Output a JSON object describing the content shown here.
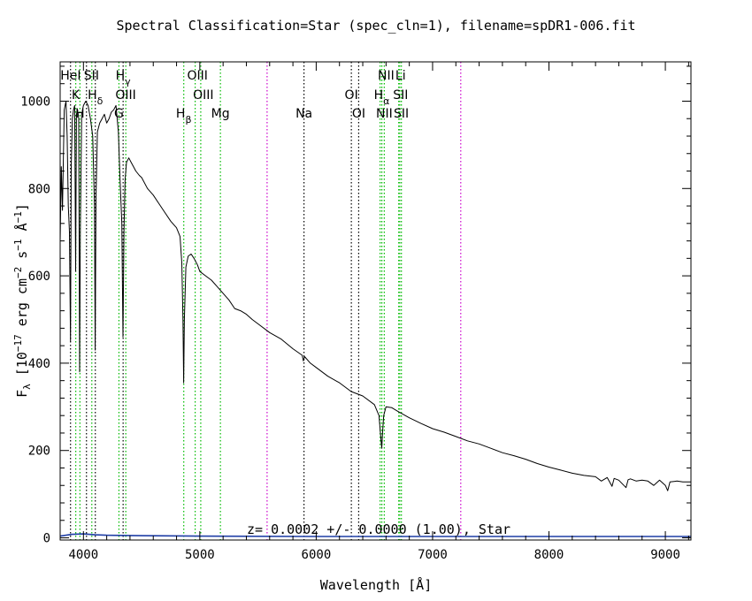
{
  "chart_data": {
    "type": "line",
    "title": "Spectral Classification=Star (spec_cln=1), filename=spDR1-006.fit",
    "xlabel_text": "Wavelength [",
    "xlabel_unit": "Å",
    "xlabel_close": "]",
    "ylabel_main": "F",
    "ylabel_sub": "λ",
    "ylabel_part1": " [10",
    "ylabel_exp1": "−17",
    "ylabel_part2": " erg cm",
    "ylabel_exp2": "−2",
    "ylabel_part3": " s",
    "ylabel_exp3": "−1",
    "ylabel_part4": " Å",
    "ylabel_exp4": "−1",
    "ylabel_part5": "]",
    "xlim": [
      3800,
      9220
    ],
    "ylim": [
      -5,
      1090
    ],
    "xticks": [
      4000,
      5000,
      6000,
      7000,
      8000,
      9000
    ],
    "yticks": [
      0,
      200,
      400,
      600,
      800,
      1000
    ],
    "annotation": "z= 0.0002 +/- 0.0000 (1.00), Star",
    "series": [
      {
        "color": "#000000",
        "points": [
          [
            3800,
            680
          ],
          [
            3810,
            850
          ],
          [
            3820,
            750
          ],
          [
            3835,
            980
          ],
          [
            3850,
            1000
          ],
          [
            3860,
            920
          ],
          [
            3870,
            760
          ],
          [
            3880,
            700
          ],
          [
            3889,
            450
          ],
          [
            3895,
            850
          ],
          [
            3905,
            960
          ],
          [
            3915,
            980
          ],
          [
            3925,
            990
          ],
          [
            3933,
            610
          ],
          [
            3940,
            970
          ],
          [
            3950,
            980
          ],
          [
            3960,
            960
          ],
          [
            3967,
            380
          ],
          [
            3973,
            700
          ],
          [
            3985,
            970
          ],
          [
            4000,
            990
          ],
          [
            4020,
            1000
          ],
          [
            4040,
            990
          ],
          [
            4060,
            960
          ],
          [
            4080,
            920
          ],
          [
            4095,
            760
          ],
          [
            4101,
            430
          ],
          [
            4108,
            780
          ],
          [
            4120,
            930
          ],
          [
            4140,
            950
          ],
          [
            4160,
            960
          ],
          [
            4180,
            970
          ],
          [
            4200,
            950
          ],
          [
            4220,
            960
          ],
          [
            4240,
            975
          ],
          [
            4260,
            980
          ],
          [
            4280,
            990
          ],
          [
            4300,
            930
          ],
          [
            4315,
            820
          ],
          [
            4330,
            720
          ],
          [
            4340,
            460
          ],
          [
            4348,
            700
          ],
          [
            4358,
            820
          ],
          [
            4370,
            860
          ],
          [
            4390,
            870
          ],
          [
            4410,
            860
          ],
          [
            4430,
            850
          ],
          [
            4450,
            840
          ],
          [
            4480,
            830
          ],
          [
            4500,
            825
          ],
          [
            4550,
            800
          ],
          [
            4600,
            785
          ],
          [
            4650,
            765
          ],
          [
            4700,
            745
          ],
          [
            4750,
            725
          ],
          [
            4800,
            710
          ],
          [
            4830,
            690
          ],
          [
            4845,
            630
          ],
          [
            4855,
            500
          ],
          [
            4861,
            355
          ],
          [
            4867,
            500
          ],
          [
            4880,
            620
          ],
          [
            4900,
            645
          ],
          [
            4925,
            650
          ],
          [
            4950,
            640
          ],
          [
            4980,
            625
          ],
          [
            5000,
            610
          ],
          [
            5050,
            600
          ],
          [
            5100,
            590
          ],
          [
            5150,
            575
          ],
          [
            5200,
            560
          ],
          [
            5250,
            545
          ],
          [
            5300,
            525
          ],
          [
            5350,
            520
          ],
          [
            5400,
            512
          ],
          [
            5450,
            500
          ],
          [
            5500,
            490
          ],
          [
            5600,
            470
          ],
          [
            5700,
            455
          ],
          [
            5800,
            433
          ],
          [
            5880,
            418
          ],
          [
            5890,
            405
          ],
          [
            5900,
            415
          ],
          [
            5950,
            400
          ],
          [
            6000,
            390
          ],
          [
            6100,
            370
          ],
          [
            6200,
            355
          ],
          [
            6300,
            335
          ],
          [
            6400,
            325
          ],
          [
            6500,
            305
          ],
          [
            6540,
            280
          ],
          [
            6555,
            230
          ],
          [
            6563,
            205
          ],
          [
            6570,
            240
          ],
          [
            6580,
            280
          ],
          [
            6600,
            300
          ],
          [
            6650,
            298
          ],
          [
            6700,
            290
          ],
          [
            6800,
            275
          ],
          [
            6900,
            262
          ],
          [
            7000,
            250
          ],
          [
            7100,
            242
          ],
          [
            7200,
            232
          ],
          [
            7300,
            222
          ],
          [
            7400,
            215
          ],
          [
            7500,
            205
          ],
          [
            7600,
            195
          ],
          [
            7700,
            188
          ],
          [
            7800,
            180
          ],
          [
            7900,
            170
          ],
          [
            8000,
            162
          ],
          [
            8100,
            155
          ],
          [
            8200,
            148
          ],
          [
            8300,
            143
          ],
          [
            8400,
            140
          ],
          [
            8450,
            130
          ],
          [
            8500,
            138
          ],
          [
            8542,
            118
          ],
          [
            8560,
            136
          ],
          [
            8600,
            132
          ],
          [
            8662,
            115
          ],
          [
            8680,
            133
          ],
          [
            8700,
            135
          ],
          [
            8750,
            130
          ],
          [
            8800,
            132
          ],
          [
            8850,
            130
          ],
          [
            8900,
            120
          ],
          [
            8950,
            132
          ],
          [
            9000,
            120
          ],
          [
            9020,
            108
          ],
          [
            9040,
            128
          ],
          [
            9100,
            130
          ],
          [
            9150,
            128
          ],
          [
            9220,
            128
          ]
        ]
      },
      {
        "color": "#1f3ea6",
        "points": [
          [
            3800,
            4
          ],
          [
            3900,
            8
          ],
          [
            4000,
            9
          ],
          [
            4100,
            7
          ],
          [
            4200,
            6
          ],
          [
            4500,
            5
          ],
          [
            5000,
            4
          ],
          [
            6000,
            3
          ],
          [
            7000,
            3
          ],
          [
            8000,
            3
          ],
          [
            9000,
            3
          ],
          [
            9220,
            3
          ]
        ]
      }
    ],
    "line_markers": [
      {
        "x": 3889,
        "color": "#000000"
      },
      {
        "x": 3934,
        "color": "#00bb00"
      },
      {
        "x": 3970,
        "color": "#00bb00"
      },
      {
        "x": 4026,
        "color": "#000000"
      },
      {
        "x": 4072,
        "color": "#00bb00"
      },
      {
        "x": 4102,
        "color": "#000000"
      },
      {
        "x": 4305,
        "color": "#00bb00"
      },
      {
        "x": 4341,
        "color": "#000000"
      },
      {
        "x": 4364,
        "color": "#00bb00"
      },
      {
        "x": 4862,
        "color": "#00bb00"
      },
      {
        "x": 4960,
        "color": "#00bb00"
      },
      {
        "x": 5008,
        "color": "#00bb00"
      },
      {
        "x": 5177,
        "color": "#00bb00"
      },
      {
        "x": 5578,
        "color": "#cc00cc"
      },
      {
        "x": 5895,
        "color": "#000000"
      },
      {
        "x": 6302,
        "color": "#000000"
      },
      {
        "x": 6365,
        "color": "#000000"
      },
      {
        "x": 6549,
        "color": "#00bb00"
      },
      {
        "x": 6564,
        "color": "#00bb00"
      },
      {
        "x": 6585,
        "color": "#00bb00"
      },
      {
        "x": 6709,
        "color": "#00bb00"
      },
      {
        "x": 6718,
        "color": "#00bb00"
      },
      {
        "x": 6732,
        "color": "#00bb00"
      },
      {
        "x": 7242,
        "color": "#cc00cc"
      }
    ],
    "line_labels": [
      {
        "text": "HeI",
        "sub": "",
        "row": 1,
        "x": 3890
      },
      {
        "text": "SII",
        "sub": "",
        "row": 1,
        "x": 4069
      },
      {
        "text": "H",
        "sub": "γ",
        "row": 1,
        "x": 4341
      },
      {
        "text": "OIII",
        "sub": "",
        "row": 1,
        "x": 4980
      },
      {
        "text": "NII",
        "sub": "",
        "row": 1,
        "x": 6600
      },
      {
        "text": "Li",
        "sub": "",
        "row": 1,
        "x": 6725
      },
      {
        "text": "K",
        "sub": "",
        "row": 2,
        "x": 3934
      },
      {
        "text": "H",
        "sub": "δ",
        "row": 2,
        "x": 4102
      },
      {
        "text": "OIII",
        "sub": "",
        "row": 2,
        "x": 4363
      },
      {
        "text": "OIII",
        "sub": "",
        "row": 2,
        "x": 5030
      },
      {
        "text": "OI",
        "sub": "",
        "row": 2,
        "x": 6302
      },
      {
        "text": "H",
        "sub": "α",
        "row": 2,
        "x": 6563
      },
      {
        "text": "SII",
        "sub": "",
        "row": 2,
        "x": 6725
      },
      {
        "text": "H",
        "sub": "",
        "row": 3,
        "x": 3970
      },
      {
        "text": "G",
        "sub": "",
        "row": 3,
        "x": 4305
      },
      {
        "text": "H",
        "sub": "β",
        "row": 3,
        "x": 4862
      },
      {
        "text": "Mg",
        "sub": "",
        "row": 3,
        "x": 5177
      },
      {
        "text": "Na",
        "sub": "",
        "row": 3,
        "x": 5895
      },
      {
        "text": "OI",
        "sub": "",
        "row": 3,
        "x": 6365
      },
      {
        "text": "NII",
        "sub": "",
        "row": 3,
        "x": 6585
      },
      {
        "text": "SII",
        "sub": "",
        "row": 3,
        "x": 6731
      }
    ],
    "grid": false,
    "legend": "none"
  }
}
